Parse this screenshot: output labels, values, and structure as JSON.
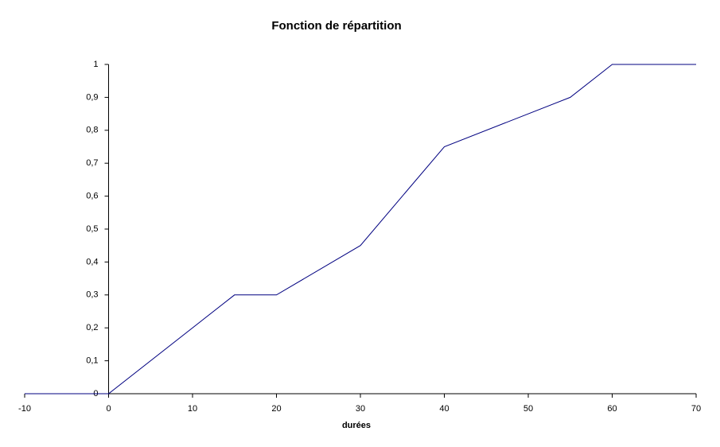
{
  "chart_data": {
    "type": "line",
    "title": "Fonction de répartition",
    "x_label": "durées",
    "x": [
      -10,
      0,
      15,
      20,
      30,
      40,
      55,
      60,
      70
    ],
    "values": [
      0,
      0,
      0.3,
      0.3,
      0.45,
      0.75,
      0.9,
      1,
      1
    ],
    "color": "#000080",
    "xlim": [
      -10,
      70
    ],
    "xticks": [
      -10,
      0,
      10,
      20,
      30,
      40,
      50,
      60,
      70
    ],
    "ylim": [
      0,
      1
    ],
    "yticks": [
      0,
      {
        "value": 0.1,
        "label": "0,1"
      },
      {
        "value": 0.2,
        "label": "0,2"
      },
      {
        "value": 0.3,
        "label": "0,3"
      },
      {
        "value": 0.4,
        "label": "0,4"
      },
      {
        "value": 0.5,
        "label": "0,5"
      },
      {
        "value": 0.6,
        "label": "0,6"
      },
      {
        "value": 0.7,
        "label": "0,7"
      },
      {
        "value": 0.8,
        "label": "0,8"
      },
      {
        "value": 0.9,
        "label": "0,9"
      },
      1
    ],
    "grid": false
  }
}
